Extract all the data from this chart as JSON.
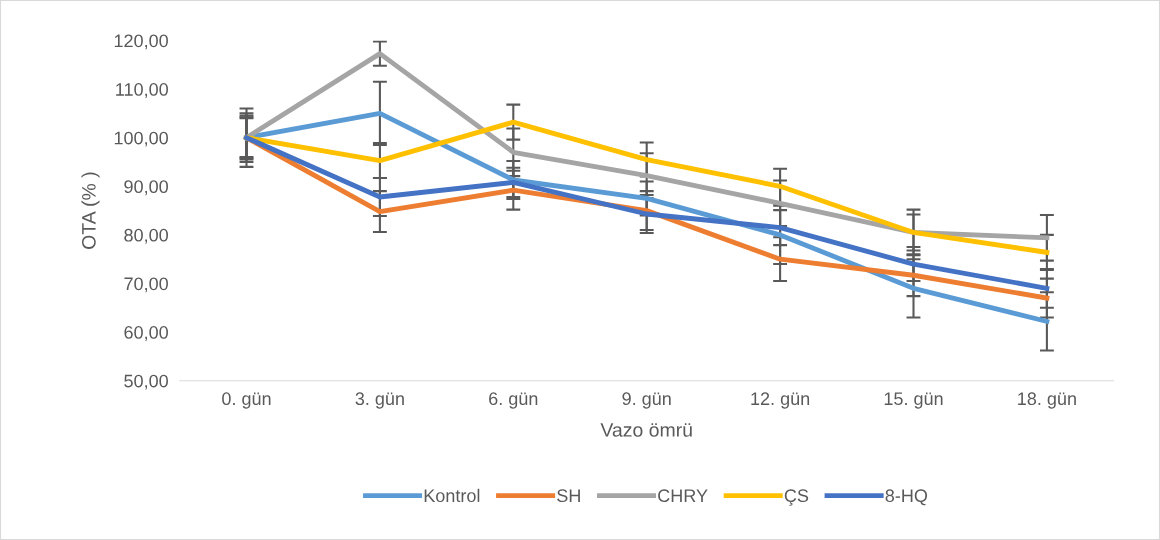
{
  "chart_data": {
    "type": "line",
    "xlabel": "Vazo ömrü",
    "ylabel": "OTA (% )",
    "categories": [
      "0. gün",
      "3. gün",
      "6. gün",
      "9. gün",
      "12. gün",
      "15. gün",
      "18. gün"
    ],
    "ylim": [
      50,
      120
    ],
    "yticks": [
      {
        "value": 50,
        "label": "50,00"
      },
      {
        "value": 60,
        "label": "60,00"
      },
      {
        "value": 70,
        "label": "70,00"
      },
      {
        "value": 80,
        "label": "80,00"
      },
      {
        "value": 90,
        "label": "90,00"
      },
      {
        "value": 100,
        "label": "100,00"
      },
      {
        "value": 110,
        "label": "110,00"
      },
      {
        "value": 120,
        "label": "120,00"
      }
    ],
    "grid": false,
    "legend": "bottom",
    "marker": "none",
    "line_style": "solid",
    "series": [
      {
        "name": "Kontrol",
        "color": "#5b9bd5",
        "values": [
          100,
          105,
          91.3,
          87.5,
          80,
          69,
          62.2
        ],
        "errors": [
          6,
          6.5,
          3.9,
          3.5,
          6,
          6,
          6
        ]
      },
      {
        "name": "SH",
        "color": "#ed7d31",
        "values": [
          100,
          84.8,
          89.2,
          85,
          75,
          71.7,
          67
        ],
        "errors": [
          5,
          4.2,
          4,
          4,
          4.5,
          4.3,
          4
        ]
      },
      {
        "name": "CHRY",
        "color": "#a5a5a5",
        "values": [
          100,
          117.3,
          97,
          92.2,
          86.5,
          80.5,
          79.4
        ],
        "errors": [
          4,
          2.5,
          4.9,
          4.6,
          4.7,
          4.7,
          4.7
        ]
      },
      {
        "name": "ÇS",
        "color": "#ffc000",
        "values": [
          100,
          95.3,
          103.2,
          95.5,
          90,
          80.5,
          76.4
        ],
        "errors": [
          4.5,
          3.6,
          3.6,
          3.5,
          3.6,
          3.7,
          3.6
        ]
      },
      {
        "name": "8-HQ",
        "color": "#4472c4",
        "values": [
          100,
          87.8,
          90.8,
          84.3,
          81.5,
          74,
          69
        ],
        "errors": [
          4.2,
          3.9,
          3,
          3.9,
          3.6,
          3.5,
          4
        ]
      }
    ]
  }
}
